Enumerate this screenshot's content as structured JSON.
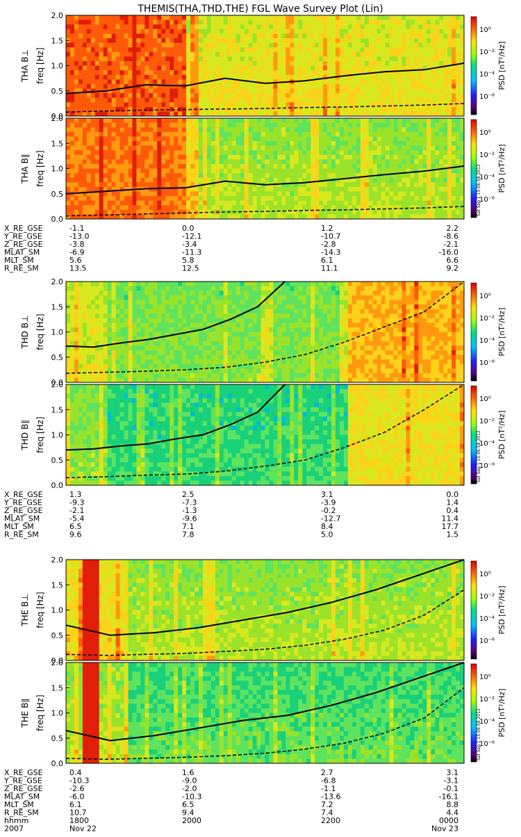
{
  "title": "THEMIS(THA,THD,THE) FGL Wave Survey Plot (Lin)",
  "stamp": "Sat Sep 1 15:06:58 2012",
  "colorbar": {
    "label": "PSD [nT²/Hz]",
    "ticks": [
      "10⁰",
      "10⁻²",
      "10⁻⁴",
      "10⁻⁶"
    ]
  },
  "freq_ticks": [
    "2.0",
    "1.5",
    "1.0",
    "0.5",
    "0.0"
  ],
  "ylabel_units": "freq [Hz]",
  "groups": [
    {
      "panels": [
        {
          "label": "THA B⊥"
        },
        {
          "label": "THA B∥"
        }
      ],
      "ephem": {
        "names": [
          "X_RE_GSE",
          "Y_RE_GSE",
          "Z_RE_GSE",
          "MLAT_SM",
          "MLT_SM",
          "R_RE_SM"
        ],
        "cols": [
          [
            "-1.1",
            "-13.0",
            "-3.8",
            "-6.9",
            "5.6",
            "13.5"
          ],
          [
            "0.0",
            "-12.1",
            "-3.4",
            "-11.3",
            "5.8",
            "12.5"
          ],
          [
            "1.2",
            "-10.7",
            "-2.8",
            "-14.3",
            "6.1",
            "11.1"
          ],
          [
            "2.2",
            "-8.6",
            "-2.1",
            "-16.0",
            "6.6",
            "9.2"
          ]
        ]
      }
    },
    {
      "panels": [
        {
          "label": "THD B⊥"
        },
        {
          "label": "THD B∥"
        }
      ],
      "ephem": {
        "names": [
          "X_RE_GSE",
          "Y_RE_GSE",
          "Z_RE_GSE",
          "MLAT_SM",
          "MLT_SM",
          "R_RE_SM"
        ],
        "cols": [
          [
            "1.3",
            "-9.3",
            "-2.1",
            "-5.4",
            "6.5",
            "9.6"
          ],
          [
            "2.5",
            "-7.3",
            "-1.3",
            "-9.6",
            "7.1",
            "7.8"
          ],
          [
            "3.1",
            "-3.9",
            "-0.2",
            "-12.7",
            "8.4",
            "5.0"
          ],
          [
            "0.0",
            "1.4",
            "0.4",
            "11.4",
            "17.7",
            "1.5"
          ]
        ]
      }
    },
    {
      "panels": [
        {
          "label": "THE B⊥"
        },
        {
          "label": "THE B∥"
        }
      ],
      "ephem": {
        "names": [
          "X_RE_GSE",
          "Y_RE_GSE",
          "Z_RE_GSE",
          "MLAT_SM",
          "MLT_SM",
          "R_RE_SM",
          "hhmm",
          "2007"
        ],
        "cols": [
          [
            "0.4",
            "-10.3",
            "-2.6",
            "-6.0",
            "6.1",
            "10.7",
            "1800",
            "Nov 22"
          ],
          [
            "1.6",
            "-9.0",
            "-2.0",
            "-10.3",
            "6.5",
            "9.4",
            "2000",
            ""
          ],
          [
            "2.7",
            "-6.8",
            "-1.1",
            "-13.6",
            "7.2",
            "7.4",
            "2200",
            ""
          ],
          [
            "3.1",
            "-3.1",
            "-0.1",
            "-16.1",
            "8.8",
            "4.4",
            "0000",
            "Nov 23"
          ]
        ]
      }
    }
  ],
  "chart_data": {
    "type": "heatmap",
    "title": "THEMIS(THA,THD,THE) FGL Wave Survey Plot (Lin)",
    "ylabel": "freq [Hz]",
    "ylim": [
      0,
      2.0
    ],
    "x_ticks": [
      "1800",
      "2000",
      "2200",
      "0000"
    ],
    "colorbar_label": "PSD [nT²/Hz]",
    "colorbar_range_log10": [
      -7,
      1
    ],
    "series": [
      {
        "name": "THA B⊥",
        "solid": [
          0.45,
          0.5,
          0.62,
          0.6,
          0.75,
          0.65,
          0.7,
          0.8,
          0.88,
          0.92,
          1.05
        ],
        "dashed": [
          0.08,
          0.1,
          0.12,
          0.13,
          0.14,
          0.15,
          0.17,
          0.18,
          0.2,
          0.22,
          0.25
        ]
      },
      {
        "name": "THA B∥",
        "solid": [
          0.5,
          0.55,
          0.6,
          0.62,
          0.75,
          0.68,
          0.72,
          0.8,
          0.88,
          0.95,
          1.05
        ],
        "dashed": [
          0.06,
          0.08,
          0.1,
          0.12,
          0.14,
          0.15,
          0.17,
          0.18,
          0.2,
          0.22,
          0.25
        ]
      },
      {
        "name": "THD B⊥",
        "solid": [
          0.72,
          0.7,
          0.78,
          0.85,
          0.95,
          1.05,
          1.25,
          1.5,
          2.0
        ],
        "dashed": [
          0.18,
          0.2,
          0.22,
          0.25,
          0.3,
          0.4,
          0.55,
          0.8,
          1.1,
          1.4,
          2.0
        ]
      },
      {
        "name": "THD B∥",
        "solid": [
          0.7,
          0.72,
          0.78,
          0.82,
          0.92,
          1.0,
          1.2,
          1.45,
          2.0
        ],
        "dashed": [
          0.15,
          0.17,
          0.2,
          0.22,
          0.28,
          0.38,
          0.5,
          0.75,
          1.05,
          1.5,
          2.0
        ]
      },
      {
        "name": "THE B⊥",
        "solid": [
          0.7,
          0.5,
          0.55,
          0.65,
          0.8,
          0.95,
          1.15,
          1.4,
          1.7,
          2.0
        ],
        "dashed": [
          0.12,
          0.1,
          0.12,
          0.14,
          0.18,
          0.22,
          0.3,
          0.42,
          0.6,
          0.9,
          1.4
        ]
      },
      {
        "name": "THE B∥",
        "solid": [
          0.65,
          0.45,
          0.55,
          0.7,
          0.85,
          0.95,
          1.15,
          1.4,
          1.7,
          2.0
        ],
        "dashed": [
          0.1,
          0.08,
          0.1,
          0.12,
          0.15,
          0.2,
          0.28,
          0.4,
          0.6,
          0.9,
          1.5
        ]
      }
    ]
  }
}
